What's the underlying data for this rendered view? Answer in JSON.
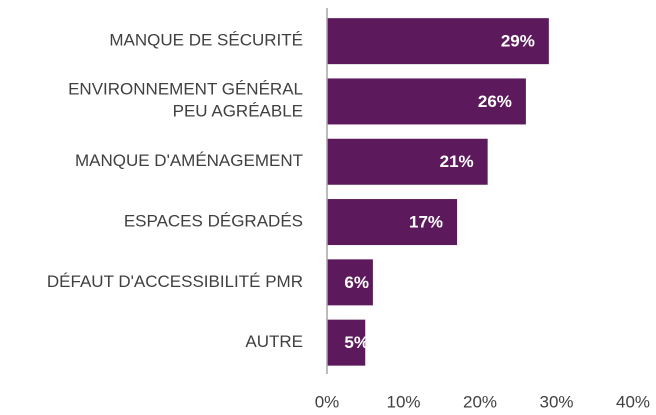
{
  "chart_data": {
    "type": "bar",
    "orientation": "horizontal",
    "categories": [
      "MANQUE DE SÉCURITÉ",
      "ENVIRONNEMENT GÉNÉRAL\nPEU AGRÉABLE",
      "MANQUE D'AMÉNAGEMENT",
      "ESPACES DÉGRADÉS",
      "DÉFAUT D'ACCESSIBILITÉ PMR",
      "AUTRE"
    ],
    "values": [
      29,
      26,
      21,
      17,
      6,
      5
    ],
    "value_labels": [
      "29%",
      "26%",
      "21%",
      "17%",
      "6%",
      "5%"
    ],
    "color": "#5c1a5c",
    "xlim": [
      0,
      40
    ],
    "xticks": [
      {
        "value": 0,
        "label": "0%"
      },
      {
        "value": 10,
        "label": "10%"
      },
      {
        "value": 20,
        "label": "20%"
      },
      {
        "value": 30,
        "label": "30%"
      },
      {
        "value": 40,
        "label": "40%"
      }
    ],
    "grid": false
  }
}
